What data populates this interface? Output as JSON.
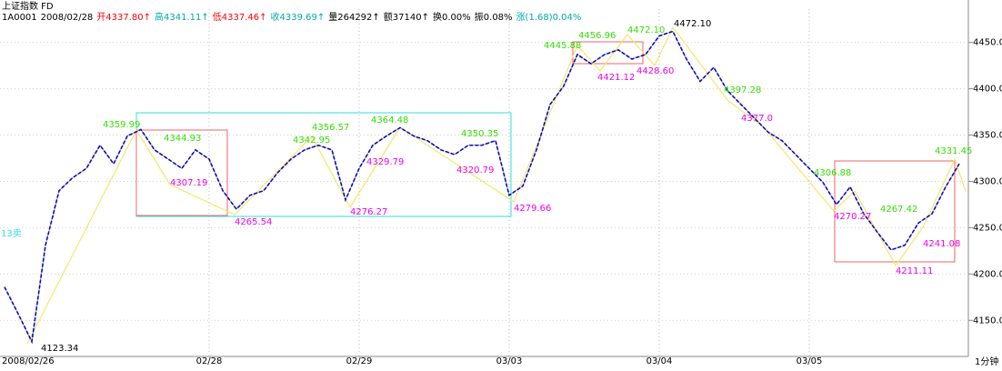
{
  "header": {
    "title": "上证指数 FD",
    "fields": [
      {
        "text": "1A0001",
        "color": "#000000"
      },
      {
        "text": "2008/02/28",
        "color": "#000000"
      },
      {
        "text": "开4337.80↑",
        "color": "#ff0000"
      },
      {
        "text": "高4341.11↑",
        "color": "#00a8a8"
      },
      {
        "text": "低4337.46↑",
        "color": "#ff0000"
      },
      {
        "text": "收4339.69↑",
        "color": "#00a8a8"
      },
      {
        "text": "量264292↑",
        "color": "#000000"
      },
      {
        "text": "额37140↑",
        "color": "#000000"
      },
      {
        "text": "换0.00%",
        "color": "#000000"
      },
      {
        "text": "振0.08%",
        "color": "#000000"
      },
      {
        "text": "涨(1.68)0.04%",
        "color": "#00a8a8"
      }
    ]
  },
  "chart_data": {
    "type": "line",
    "categories": [
      null,
      null,
      "2008/02/26",
      null,
      null,
      null,
      null,
      null,
      null,
      null,
      null,
      null,
      null,
      null,
      null,
      "02/28",
      null,
      null,
      null,
      null,
      null,
      null,
      null,
      null,
      null,
      null,
      "02/29",
      null,
      null,
      null,
      null,
      null,
      null,
      null,
      null,
      null,
      null,
      "03/03",
      null,
      null,
      null,
      null,
      null,
      null,
      null,
      null,
      null,
      null,
      "03/04",
      null,
      null,
      null,
      null,
      null,
      null,
      null,
      null,
      null,
      null,
      "03/05",
      null,
      null,
      null,
      null,
      null,
      null,
      null,
      null,
      null,
      null,
      null
    ],
    "series": [
      {
        "name": "上证指数",
        "color": "#0000ff",
        "values": [
          4186,
          4157,
          4127,
          4231,
          4290,
          4304,
          4314,
          4339,
          4319,
          4349,
          4356,
          4334,
          4324,
          4314,
          4334,
          4324,
          4290,
          4270,
          4285,
          4290,
          4309,
          4324,
          4334,
          4339,
          4334,
          4280,
          4314,
          4339,
          4349,
          4358,
          4349,
          4344,
          4334,
          4329,
          4339,
          4339,
          4344,
          4285,
          4295,
          4334,
          4383,
          4403,
          4437,
          4427,
          4437,
          4442,
          4432,
          4437,
          4457,
          4462,
          4432,
          4408,
          4423,
          4398,
          4383,
          4368,
          4353,
          4344,
          4329,
          4314,
          4299,
          4275,
          4294,
          4265,
          4245,
          4226,
          4231,
          4255,
          4265,
          4294,
          4319
        ]
      }
    ],
    "ylim": [
      4111,
      4486
    ],
    "yticks": [
      {
        "value": 4150,
        "label": "4150.00"
      },
      {
        "value": 4200,
        "label": "4200.00"
      },
      {
        "value": 4250,
        "label": "4250.00"
      },
      {
        "value": 4300,
        "label": "4300.00"
      },
      {
        "value": 4350,
        "label": "4350.00"
      },
      {
        "value": 4400,
        "label": "4400.00"
      },
      {
        "value": 4450,
        "label": "4450.00"
      }
    ],
    "grid": true,
    "high_color": "#33dd00",
    "low_color": "#ee00ee",
    "annotations": [
      "4123.34",
      "4359.99",
      "4344.93",
      "4307.19",
      "4265.54",
      "4342.95",
      "4356.57",
      "4364.48",
      "4329.79",
      "4276.27",
      "4350.35",
      "4320.79",
      "4279.66",
      "4445.88",
      "4456.96",
      "4421.12",
      "4472.10",
      "4428.60",
      "4472.10",
      "4397.28",
      "4377.0",
      "4306.88",
      "4270.27",
      "4267.42",
      "4211.11",
      "4241.08",
      "4331.45"
    ],
    "side_label": "13卖",
    "period_label": "1分钟"
  }
}
